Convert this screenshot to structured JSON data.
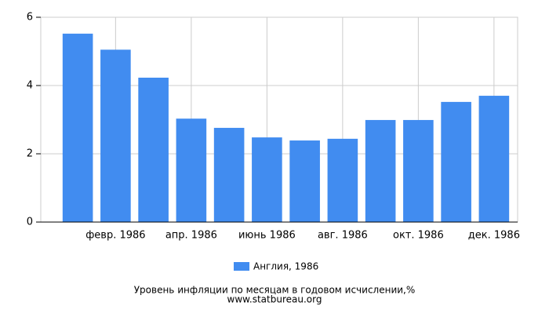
{
  "chart_data": {
    "type": "bar",
    "categories": [
      null,
      "февр. 1986",
      null,
      "апр. 1986",
      null,
      "июнь 1986",
      null,
      "авг. 1986",
      null,
      "окт. 1986",
      null,
      "дек. 1986"
    ],
    "series": [
      {
        "name": "Англия, 1986",
        "color": "#418cf0",
        "values": [
          5.52,
          5.05,
          4.23,
          3.03,
          2.76,
          2.48,
          2.39,
          2.44,
          2.99,
          2.99,
          3.52,
          3.7
        ]
      }
    ],
    "ylim": [
      0,
      6
    ],
    "yticks": [
      0,
      2,
      4,
      6
    ],
    "grid": true,
    "caption": "Уровень инфляции по месяцам в годовом исчислении,%",
    "source": "www.statbureau.org"
  }
}
